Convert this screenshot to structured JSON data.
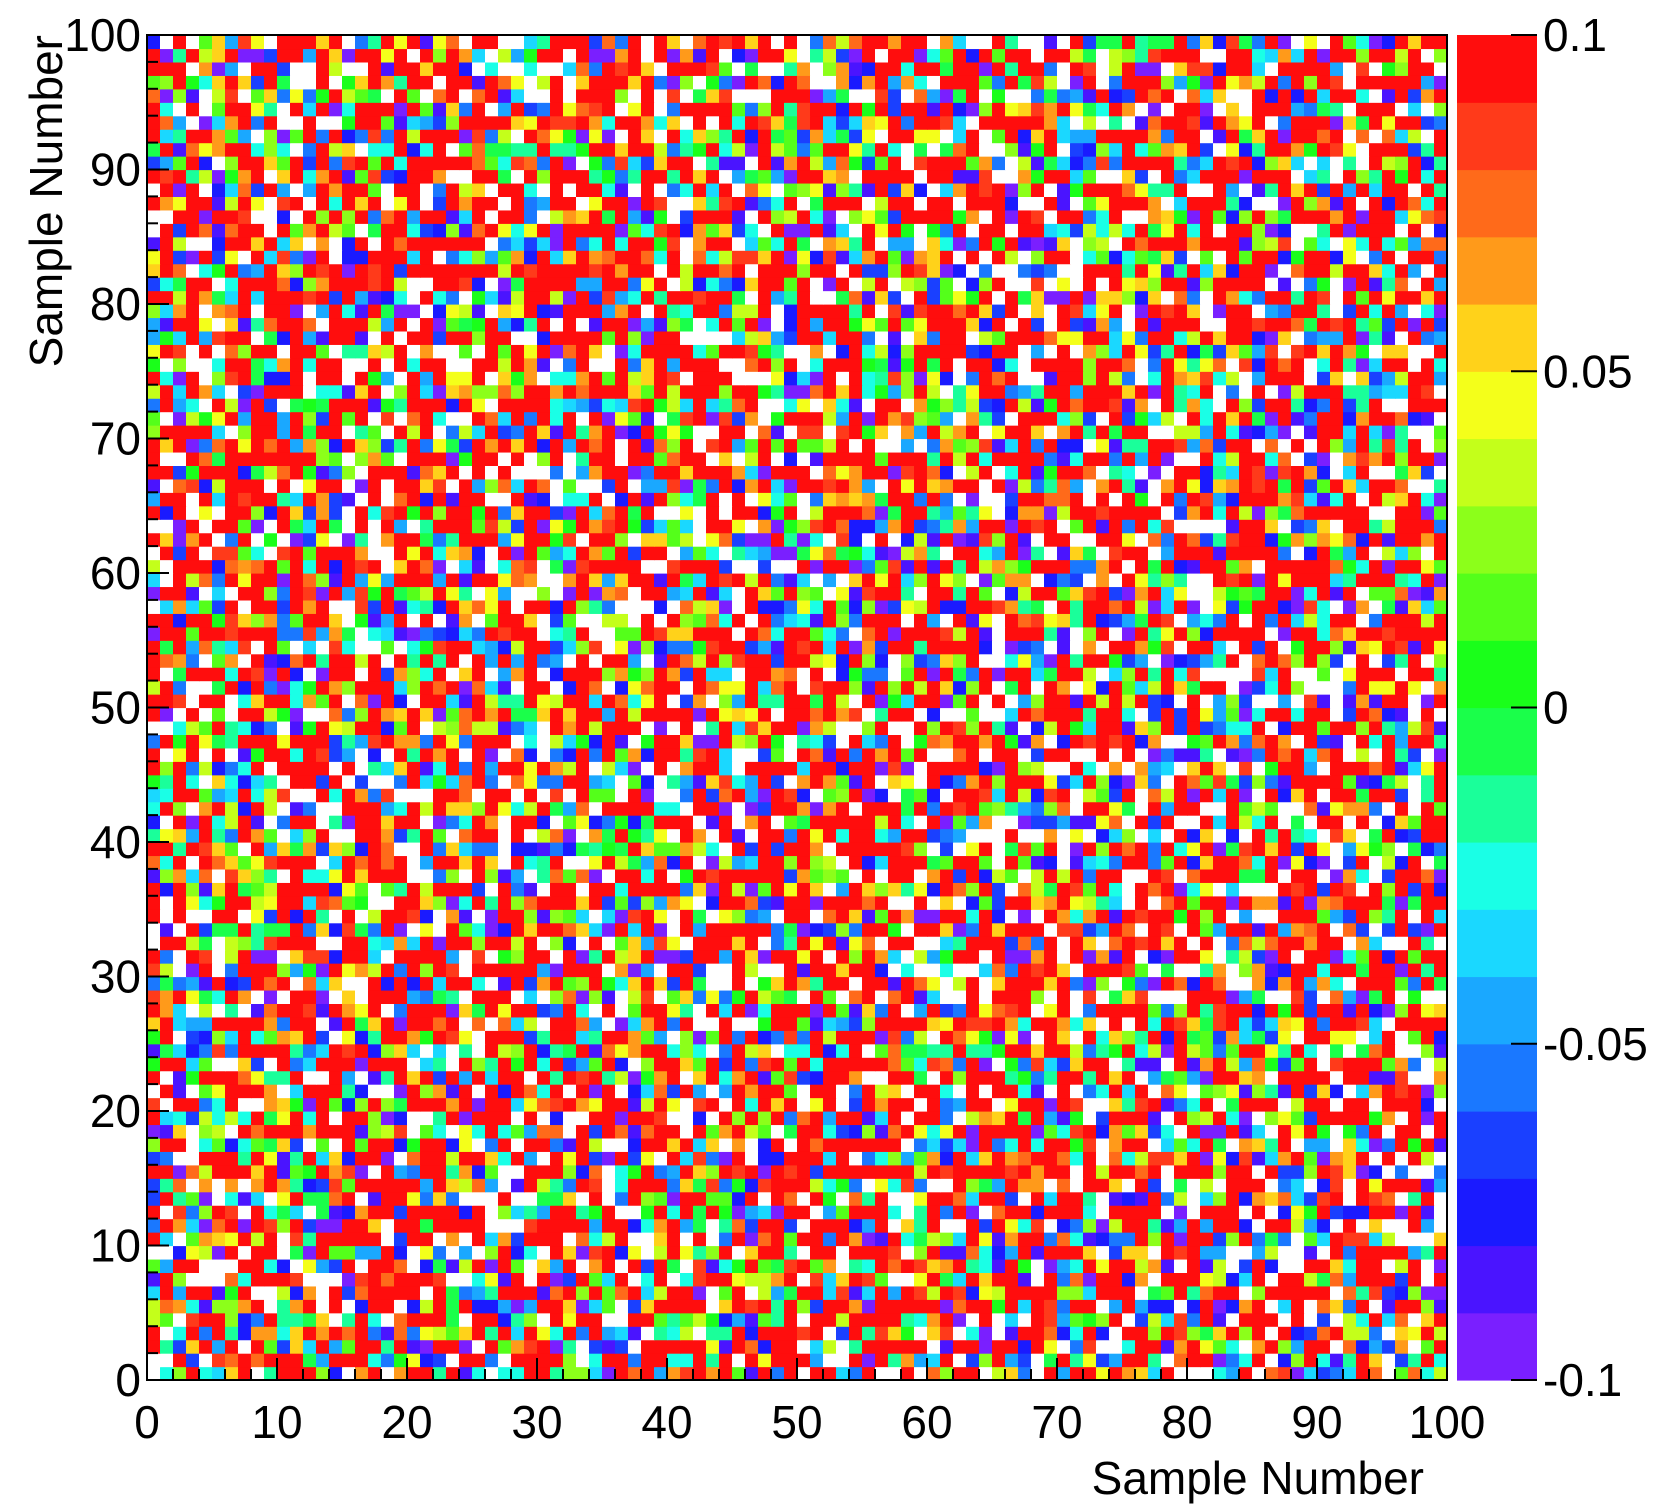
{
  "chart_data": {
    "type": "heatmap",
    "title": "",
    "xlabel": "Sample Number",
    "ylabel": "Sample Number",
    "x_range": [
      0,
      100
    ],
    "y_range": [
      0,
      100
    ],
    "x_ticks": [
      "0",
      "10",
      "20",
      "30",
      "40",
      "50",
      "60",
      "70",
      "80",
      "90",
      "100"
    ],
    "y_ticks": [
      "0",
      "10",
      "20",
      "30",
      "40",
      "50",
      "60",
      "70",
      "80",
      "90",
      "100"
    ],
    "bins": [
      100,
      100
    ],
    "z_range": [
      -0.1,
      0.1
    ],
    "colorbar": {
      "ticks": [
        "0.1",
        "0.05",
        "0",
        "-0.05",
        "-0.1"
      ],
      "levels": 20,
      "palette": [
        "#7a1fff",
        "#4a14ff",
        "#1a1aff",
        "#1a40ff",
        "#1a78ff",
        "#1aa8ff",
        "#1ad8ff",
        "#1affe6",
        "#1aff9a",
        "#1aff4a",
        "#1aff1a",
        "#54ff1a",
        "#8cff1a",
        "#c4ff1a",
        "#f4ff1a",
        "#ffd21a",
        "#ff9a1a",
        "#ff6a1a",
        "#ff3a1a",
        "#ff0d0d"
      ]
    },
    "cell_summary": "10000 correlation values between -0.1 and 0.1, appearing as fine-grained noise; values above the scale show as red, values near zero as white/green",
    "grid": false,
    "legend": "colorbar-right"
  }
}
